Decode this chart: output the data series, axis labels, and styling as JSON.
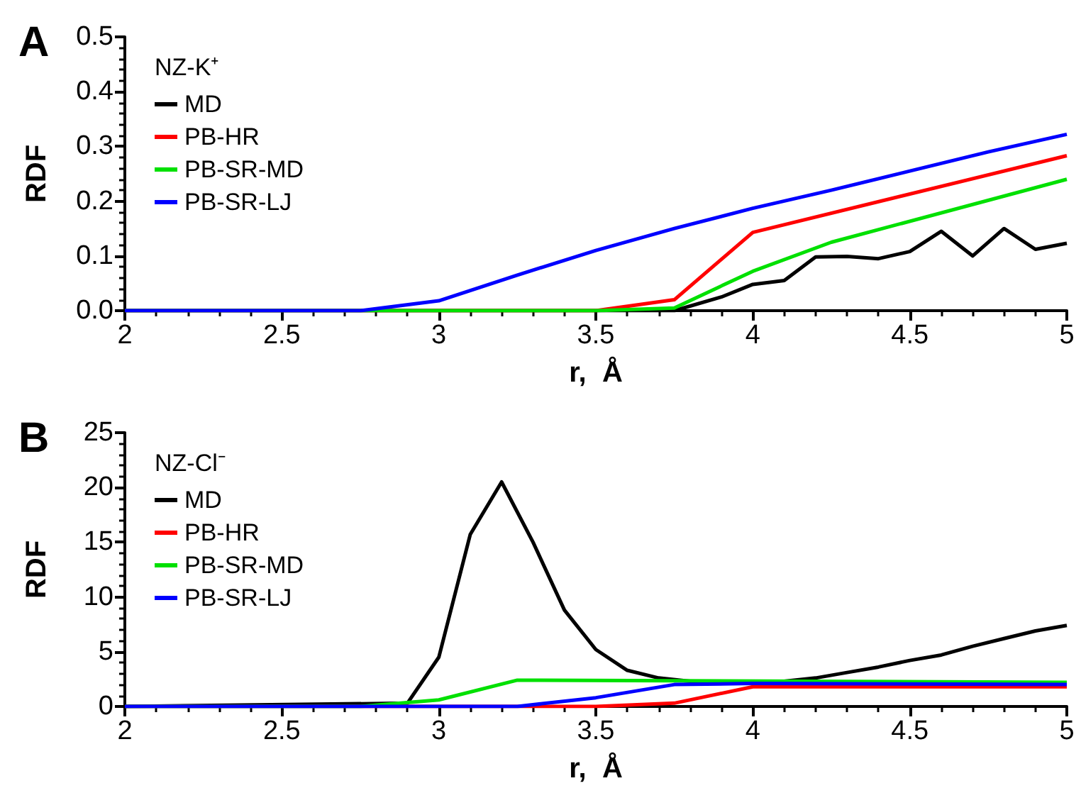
{
  "chart_data": [
    {
      "type": "line",
      "title": "A",
      "legend_title": "NZ-K⁺",
      "xlabel": "r,  Å",
      "ylabel": "RDF",
      "xlim": [
        2,
        5
      ],
      "xticks": [
        2,
        2.5,
        3,
        3.5,
        4,
        4.5,
        5
      ],
      "ylim": [
        0,
        0.5
      ],
      "yticks": [
        {
          "value": 0,
          "label": "0.0"
        },
        {
          "value": 0.1,
          "label": "0.1"
        },
        {
          "value": 0.2,
          "label": "0.2"
        },
        {
          "value": 0.3,
          "label": "0.3"
        },
        {
          "value": 0.4,
          "label": "0.4"
        },
        {
          "value": 0.5,
          "label": "0.5"
        }
      ],
      "grid": false,
      "legend": "top left",
      "marker": "none",
      "line_style": "solid",
      "series": [
        {
          "name": "MD",
          "color": "#000000",
          "x": [
            2,
            3.75,
            3.9,
            4.0,
            4.1,
            4.2,
            4.3,
            4.4,
            4.5,
            4.6,
            4.7,
            4.8,
            4.9,
            5.0
          ],
          "values": [
            0,
            0,
            0.025,
            0.048,
            0.055,
            0.098,
            0.099,
            0.095,
            0.108,
            0.145,
            0.1,
            0.15,
            0.112,
            0.123
          ]
        },
        {
          "name": "PB-HR",
          "color": "#ff0000",
          "x": [
            2,
            3.5,
            3.75,
            4.0,
            5.0
          ],
          "values": [
            0,
            0,
            0.02,
            0.143,
            0.283
          ]
        },
        {
          "name": "PB-SR-MD",
          "color": "#00e000",
          "x": [
            2,
            3.5,
            3.75,
            4.0,
            4.25,
            5.0
          ],
          "values": [
            0,
            0,
            0.005,
            0.072,
            0.125,
            0.24
          ]
        },
        {
          "name": "PB-SR-LJ",
          "color": "#0000ff",
          "x": [
            2,
            2.75,
            3.0,
            3.25,
            3.5,
            3.75,
            4.0,
            4.25,
            4.5,
            4.75,
            5.0
          ],
          "values": [
            0,
            0,
            0.018,
            0.065,
            0.11,
            0.15,
            0.187,
            0.22,
            0.255,
            0.29,
            0.322
          ]
        }
      ]
    },
    {
      "type": "line",
      "title": "B",
      "legend_title": "NZ-Cl⁻",
      "xlabel": "r,  Å",
      "ylabel": "RDF",
      "xlim": [
        2,
        5
      ],
      "xticks": [
        2,
        2.5,
        3,
        3.5,
        4,
        4.5,
        5
      ],
      "ylim": [
        0,
        25
      ],
      "yticks": [
        0,
        5,
        10,
        15,
        20,
        25
      ],
      "grid": false,
      "legend": "top left",
      "marker": "none",
      "line_style": "solid",
      "series": [
        {
          "name": "MD",
          "color": "#000000",
          "x": [
            2,
            2.9,
            3.0,
            3.1,
            3.2,
            3.3,
            3.4,
            3.5,
            3.6,
            3.7,
            3.8,
            3.9,
            4.0,
            4.1,
            4.2,
            4.3,
            4.4,
            4.5,
            4.6,
            4.7,
            4.8,
            4.9,
            5.0
          ],
          "values": [
            0,
            0.3,
            4.5,
            15.7,
            20.5,
            15,
            8.8,
            5.2,
            3.3,
            2.6,
            2.3,
            2.2,
            2.2,
            2.3,
            2.6,
            3.1,
            3.6,
            4.2,
            4.7,
            5.5,
            6.2,
            6.9,
            7.4
          ]
        },
        {
          "name": "PB-HR",
          "color": "#ff0000",
          "x": [
            2,
            3.5,
            3.75,
            4.0,
            5.0
          ],
          "values": [
            0,
            0,
            0.3,
            1.8,
            1.8
          ]
        },
        {
          "name": "PB-SR-MD",
          "color": "#00e000",
          "x": [
            2,
            2.75,
            3.0,
            3.25,
            5.0
          ],
          "values": [
            0,
            0,
            0.6,
            2.4,
            2.2
          ]
        },
        {
          "name": "PB-SR-LJ",
          "color": "#0000ff",
          "x": [
            2,
            3.25,
            3.5,
            3.75,
            4.0,
            5.0
          ],
          "values": [
            0,
            0,
            0.8,
            2.0,
            2.1,
            2.0
          ]
        }
      ]
    }
  ]
}
